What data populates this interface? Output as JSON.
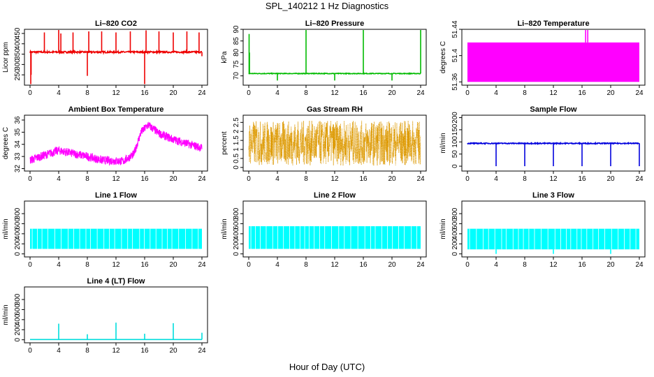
{
  "title": "SPL_140212  1 Hz Diagnostics",
  "xlabel": "Hour of Day (UTC)",
  "chart_data": [
    {
      "type": "line",
      "title": "Li–820 CO2",
      "ylabel": "Licor ppm",
      "color": "#ee0000",
      "xlim": [
        0,
        24
      ],
      "ylim": [
        200,
        470
      ],
      "xticks": [
        0,
        4,
        8,
        12,
        16,
        20,
        24
      ],
      "yticks": [
        250,
        300,
        350,
        400,
        450
      ],
      "base": 360,
      "noise": 4,
      "spikes": [
        [
          0.1,
          205
        ],
        [
          0.15,
          250
        ],
        [
          2,
          455
        ],
        [
          4,
          470
        ],
        [
          4.3,
          450
        ],
        [
          6,
          455
        ],
        [
          8,
          245
        ],
        [
          8.2,
          460
        ],
        [
          10,
          460
        ],
        [
          12,
          455
        ],
        [
          14,
          460
        ],
        [
          16,
          205
        ],
        [
          16.2,
          465
        ],
        [
          18,
          460
        ],
        [
          20,
          455
        ],
        [
          21.9,
          460
        ],
        [
          23.6,
          455
        ],
        [
          24,
          340
        ]
      ]
    },
    {
      "type": "line",
      "title": "Li–820 Pressure",
      "ylabel": "kPa",
      "color": "#00bb00",
      "xlim": [
        0,
        24
      ],
      "ylim": [
        66,
        90
      ],
      "xticks": [
        0,
        4,
        8,
        12,
        16,
        20,
        24
      ],
      "yticks": [
        70,
        75,
        80,
        85,
        90
      ],
      "base": 71,
      "noise": 0.15,
      "spikes": [
        [
          0.05,
          88
        ],
        [
          0.1,
          80
        ],
        [
          4,
          68
        ],
        [
          8,
          90
        ],
        [
          12,
          68
        ],
        [
          16,
          90
        ],
        [
          20,
          68
        ],
        [
          24,
          90
        ]
      ]
    },
    {
      "type": "area",
      "title": "Li–820 Temperature",
      "ylabel": "degrees C",
      "color": "#ff00ff",
      "xlim": [
        0,
        24
      ],
      "ylim": [
        51.355,
        51.44
      ],
      "xticks": [
        0,
        4,
        8,
        12,
        16,
        20,
        24
      ],
      "yticks": [
        51.36,
        51.4,
        51.44
      ],
      "low": 51.36,
      "high": 51.42,
      "spikes": [
        [
          16.5,
          51.44
        ],
        [
          16.8,
          51.44
        ]
      ]
    },
    {
      "type": "line",
      "title": "Ambient Box Temperature",
      "ylabel": "degrees C",
      "color": "#ff00ff",
      "xlim": [
        0,
        24
      ],
      "ylim": [
        31.8,
        36.4
      ],
      "xticks": [
        0,
        4,
        8,
        12,
        16,
        20,
        24
      ],
      "yticks": [
        32,
        33,
        34,
        35,
        36
      ],
      "profile": [
        [
          0,
          32.7
        ],
        [
          4,
          33.5
        ],
        [
          8,
          33.0
        ],
        [
          10,
          32.7
        ],
        [
          13,
          32.6
        ],
        [
          14.5,
          33.2
        ],
        [
          15.5,
          35.0
        ],
        [
          16.5,
          35.6
        ],
        [
          18,
          34.9
        ],
        [
          20,
          34.4
        ],
        [
          24,
          33.7
        ]
      ],
      "band": 0.7
    },
    {
      "type": "line",
      "title": "Gas Stream RH",
      "ylabel": "percent",
      "color": "#dd9900",
      "xlim": [
        0,
        24
      ],
      "ylim": [
        -0.2,
        2.9
      ],
      "xticks": [
        0,
        4,
        8,
        12,
        16,
        20,
        24
      ],
      "yticks": [
        0.0,
        0.5,
        1.0,
        1.5,
        2.0,
        2.5
      ],
      "low": 0.1,
      "high": 2.6
    },
    {
      "type": "line",
      "title": "Sample Flow",
      "ylabel": "ml/min",
      "color": "#0000dd",
      "xlim": [
        0,
        24
      ],
      "ylim": [
        -20,
        210
      ],
      "xticks": [
        0,
        4,
        8,
        12,
        16,
        20,
        24
      ],
      "yticks": [
        0,
        50,
        100,
        150,
        200
      ],
      "base": 94,
      "noise": 2,
      "spikes": [
        [
          4,
          0
        ],
        [
          8,
          0
        ],
        [
          12,
          0
        ],
        [
          16,
          0
        ],
        [
          20,
          0
        ],
        [
          24,
          0
        ]
      ]
    },
    {
      "type": "area",
      "title": "Line 1 Flow",
      "ylabel": "ml/min",
      "color": "#00ffff",
      "xlim": [
        0,
        24
      ],
      "ylim": [
        -60,
        1050
      ],
      "xticks": [
        0,
        4,
        8,
        12,
        16,
        20,
        24
      ],
      "yticks": [
        0,
        200,
        400,
        600,
        800
      ],
      "low": 100,
      "high": 500
    },
    {
      "type": "area",
      "title": "Line 2 Flow",
      "ylabel": "ml/min",
      "color": "#00ffff",
      "xlim": [
        0,
        24
      ],
      "ylim": [
        -60,
        1050
      ],
      "xticks": [
        0,
        4,
        8,
        12,
        16,
        20,
        24
      ],
      "yticks": [
        0,
        200,
        400,
        600,
        800
      ],
      "low": 100,
      "high": 550
    },
    {
      "type": "area",
      "title": "Line 3 Flow",
      "ylabel": "ml/min",
      "color": "#00ffff",
      "xlim": [
        0,
        24
      ],
      "ylim": [
        -60,
        1050
      ],
      "xticks": [
        0,
        4,
        8,
        12,
        16,
        20,
        24
      ],
      "yticks": [
        0,
        200,
        400,
        600,
        800
      ],
      "low": 90,
      "high": 500,
      "spikes": [
        [
          4,
          0
        ],
        [
          12,
          0
        ],
        [
          20,
          0
        ]
      ]
    },
    {
      "type": "line",
      "title": "Line 4 (LT) Flow",
      "ylabel": "ml/min",
      "color": "#00dddd",
      "xlim": [
        0,
        24
      ],
      "ylim": [
        -60,
        1050
      ],
      "xticks": [
        0,
        4,
        8,
        12,
        16,
        20,
        24
      ],
      "yticks": [
        0,
        200,
        400,
        600,
        800
      ],
      "base": 5,
      "noise": 0,
      "spikes": [
        [
          4,
          320
        ],
        [
          8,
          110
        ],
        [
          12,
          340
        ],
        [
          16,
          120
        ],
        [
          20,
          330
        ],
        [
          24,
          140
        ]
      ]
    }
  ]
}
